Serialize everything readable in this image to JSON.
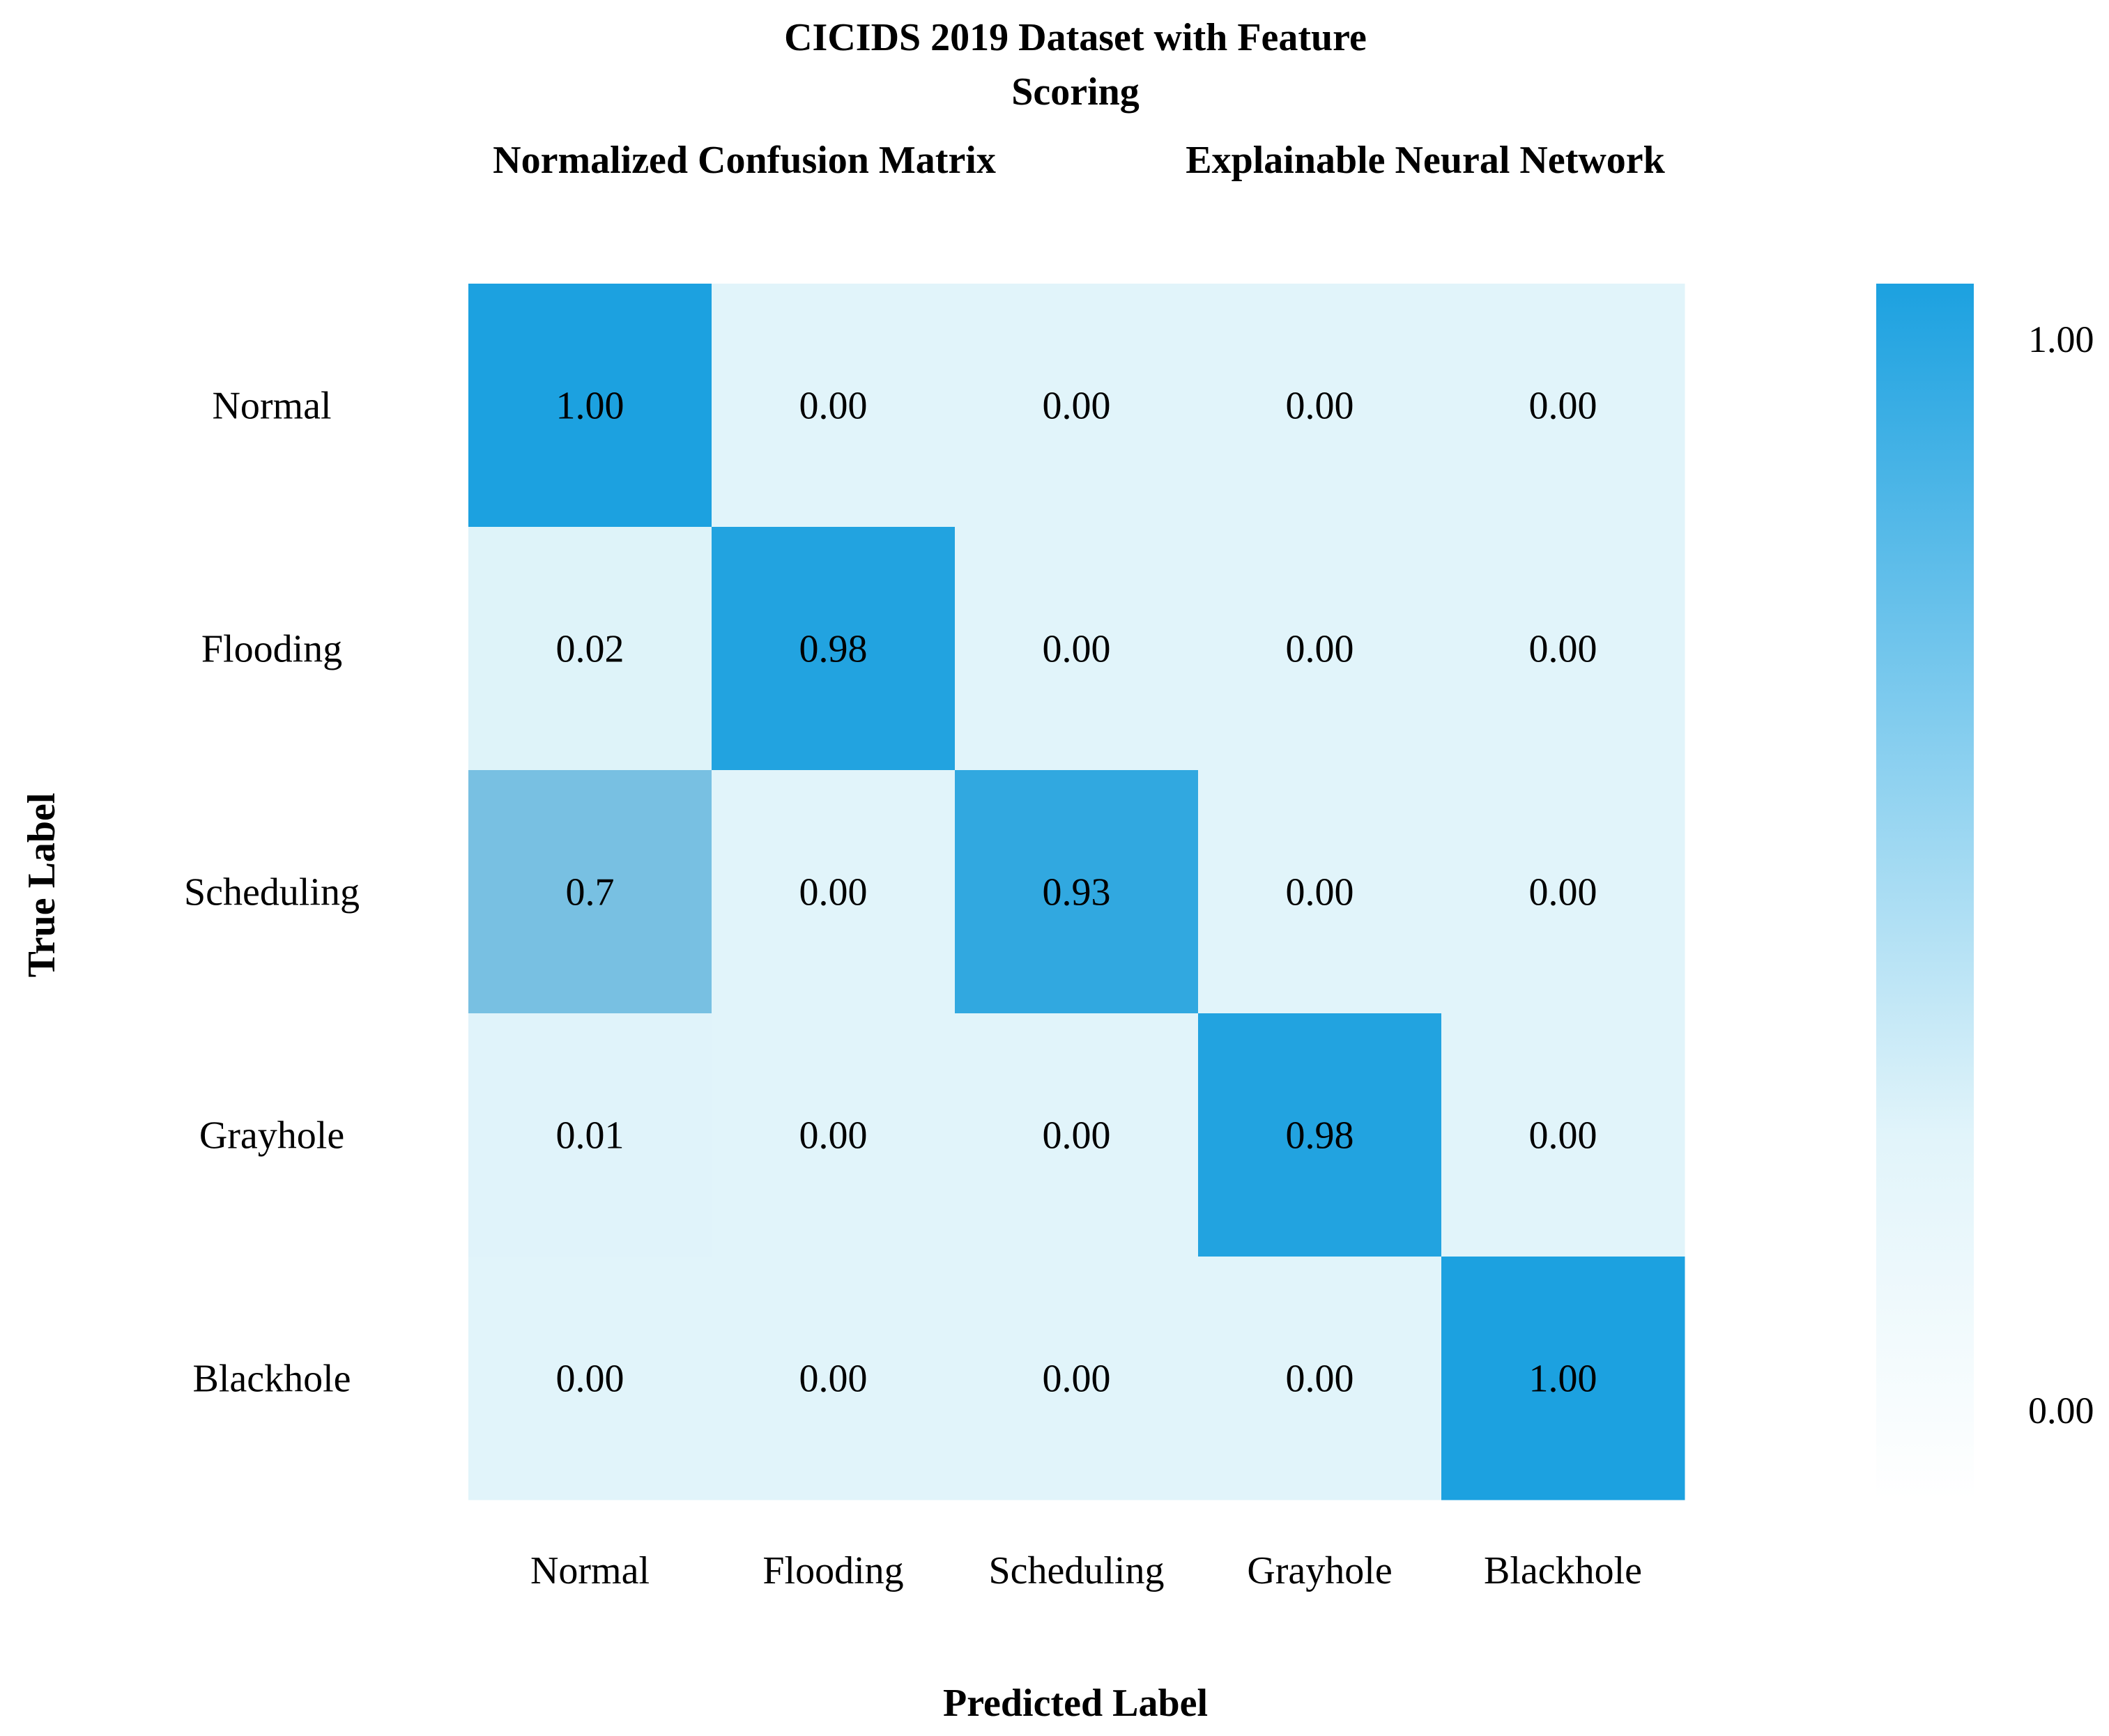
{
  "chart_data": {
    "type": "heatmap",
    "title_line1": "CICIDS 2019 Dataset with Feature",
    "title_line2": "Scoring",
    "subtitle_left": "Normalized Confusion Matrix",
    "subtitle_right": "Explainable Neural Network",
    "xlabel": "Predicted Label",
    "ylabel": "True Label",
    "x_categories": [
      "Normal",
      "Flooding",
      "Scheduling",
      "Grayhole",
      "Blackhole"
    ],
    "y_categories": [
      "Normal",
      "Flooding",
      "Scheduling",
      "Grayhole",
      "Blackhole"
    ],
    "values": [
      [
        1.0,
        0.0,
        0.0,
        0.0,
        0.0
      ],
      [
        0.02,
        0.98,
        0.0,
        0.0,
        0.0
      ],
      [
        0.7,
        0.0,
        0.93,
        0.0,
        0.0
      ],
      [
        0.01,
        0.0,
        0.0,
        0.98,
        0.0
      ],
      [
        0.0,
        0.0,
        0.0,
        0.0,
        1.0
      ]
    ],
    "cell_labels": [
      [
        "1.00",
        "0.00",
        "0.00",
        "0.00",
        "0.00"
      ],
      [
        "0.02",
        "0.98",
        "0.00",
        "0.00",
        "0.00"
      ],
      [
        "0.7",
        "0.00",
        "0.93",
        "0.00",
        "0.00"
      ],
      [
        "0.01",
        "0.00",
        "0.00",
        "0.98",
        "0.00"
      ],
      [
        "0.00",
        "0.00",
        "0.00",
        "0.00",
        "1.00"
      ]
    ],
    "colorbar": {
      "min": 0.0,
      "max": 1.0,
      "min_label": "0.00",
      "max_label": "1.00"
    },
    "colors": {
      "high": "#1ca1e0",
      "mid": "#78c0e2",
      "low": "#e1f4fa",
      "base": "#ffffff"
    }
  }
}
